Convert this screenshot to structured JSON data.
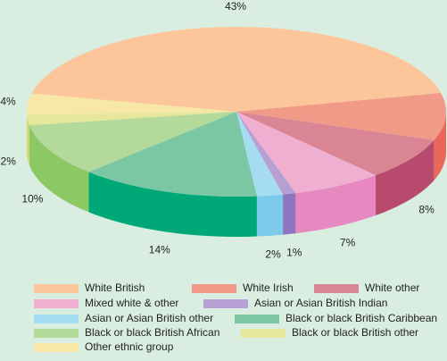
{
  "chart_data": {
    "type": "pie",
    "categories": [
      "White British",
      "White Irish",
      "White other",
      "Mixed white & other",
      "Asian or Asian British Indian",
      "Asian or Asian British other",
      "Black or black British Caribbean",
      "Black or black British African",
      "Black or black British other",
      "Other ethnic group"
    ],
    "values": [
      43,
      9,
      8,
      7,
      1,
      2,
      14,
      10,
      2,
      4
    ],
    "value_labels": [
      "43%",
      null,
      "8%",
      "7%",
      "1%",
      "2%",
      "14%",
      "10%",
      "2%",
      "4%"
    ],
    "colors": [
      "#fdc69a",
      "#f29a88",
      "#d98593",
      "#f0aed0",
      "#b59fd3",
      "#a6dcf2",
      "#7cc7a3",
      "#b3d99b",
      "#e5e89a",
      "#f8e8a8"
    ],
    "side_colors": [
      "#f5a86e",
      "#e8685a",
      "#b84a6d",
      "#e888c0",
      "#8f74c0",
      "#7ccbea",
      "#00a878",
      "#8cc864",
      "#d4d86a",
      "#eed886"
    ]
  }
}
